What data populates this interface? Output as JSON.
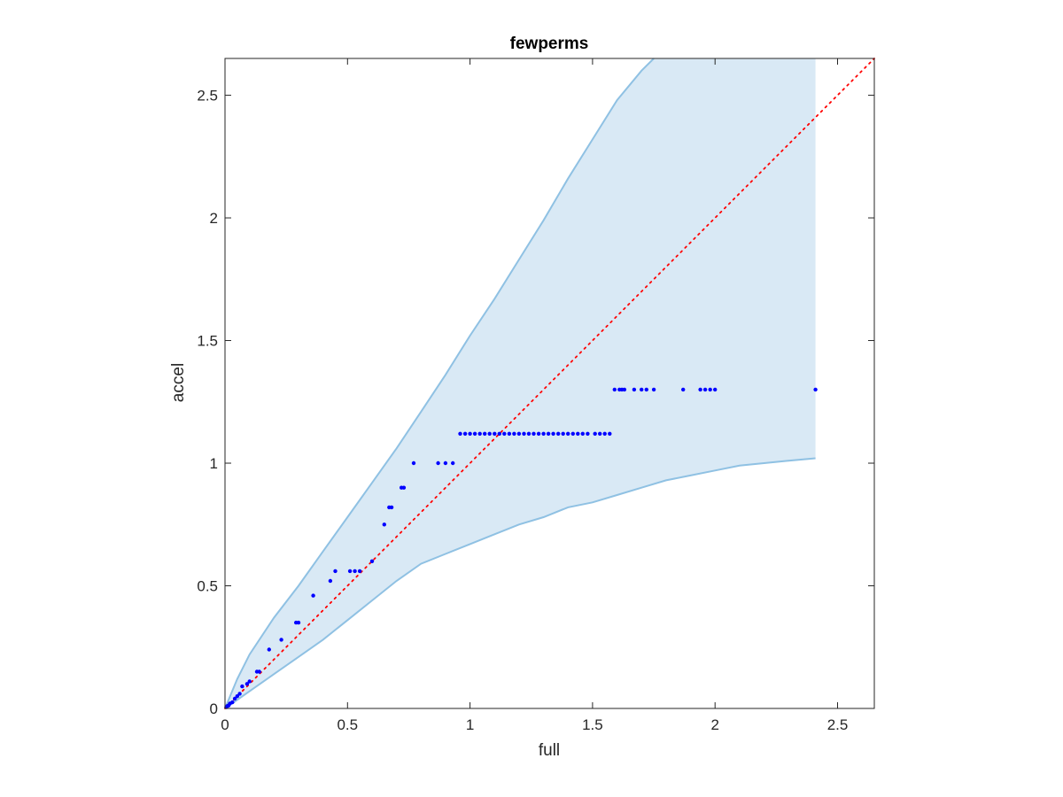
{
  "chart_data": {
    "type": "scatter",
    "title": "fewperms",
    "xlabel": "full",
    "ylabel": "accel",
    "xlim": [
      0,
      2.65
    ],
    "ylim": [
      0,
      2.65
    ],
    "xticks": [
      0,
      0.5,
      1,
      1.5,
      2,
      2.5
    ],
    "yticks": [
      0,
      0.5,
      1,
      1.5,
      2,
      2.5
    ],
    "xtick_labels": [
      "0",
      "0.5",
      "1",
      "1.5",
      "2",
      "2.5"
    ],
    "ytick_labels": [
      "0",
      "0.5",
      "1",
      "1.5",
      "2",
      "2.5"
    ],
    "grid": false,
    "band": {
      "color": "#d9e9f5",
      "edge_color": "#8fc1e3",
      "upper": [
        [
          0,
          0
        ],
        [
          0.05,
          0.12
        ],
        [
          0.1,
          0.22
        ],
        [
          0.2,
          0.37
        ],
        [
          0.3,
          0.5
        ],
        [
          0.4,
          0.64
        ],
        [
          0.5,
          0.78
        ],
        [
          0.6,
          0.92
        ],
        [
          0.7,
          1.06
        ],
        [
          0.8,
          1.21
        ],
        [
          0.9,
          1.36
        ],
        [
          1.0,
          1.52
        ],
        [
          1.1,
          1.67
        ],
        [
          1.2,
          1.83
        ],
        [
          1.3,
          1.99
        ],
        [
          1.4,
          2.16
        ],
        [
          1.5,
          2.32
        ],
        [
          1.6,
          2.48
        ],
        [
          1.7,
          2.6
        ],
        [
          1.75,
          2.65
        ],
        [
          2.41,
          2.65
        ]
      ],
      "lower": [
        [
          0,
          0
        ],
        [
          0.1,
          0.07
        ],
        [
          0.2,
          0.14
        ],
        [
          0.3,
          0.21
        ],
        [
          0.4,
          0.28
        ],
        [
          0.5,
          0.36
        ],
        [
          0.6,
          0.44
        ],
        [
          0.7,
          0.52
        ],
        [
          0.8,
          0.59
        ],
        [
          0.9,
          0.63
        ],
        [
          1.0,
          0.67
        ],
        [
          1.1,
          0.71
        ],
        [
          1.2,
          0.75
        ],
        [
          1.3,
          0.78
        ],
        [
          1.4,
          0.82
        ],
        [
          1.5,
          0.84
        ],
        [
          1.6,
          0.87
        ],
        [
          1.7,
          0.9
        ],
        [
          1.8,
          0.93
        ],
        [
          1.9,
          0.95
        ],
        [
          2.0,
          0.97
        ],
        [
          2.1,
          0.99
        ],
        [
          2.2,
          1.0
        ],
        [
          2.3,
          1.01
        ],
        [
          2.41,
          1.02
        ]
      ]
    },
    "reference_line": {
      "x": [
        0,
        2.65
      ],
      "y": [
        0,
        2.65
      ],
      "color": "#ff0000",
      "style": "dotted"
    },
    "series": [
      {
        "color": "#0000ff",
        "points": [
          [
            0.005,
            0.005
          ],
          [
            0.01,
            0.01
          ],
          [
            0.015,
            0.012
          ],
          [
            0.02,
            0.02
          ],
          [
            0.03,
            0.025
          ],
          [
            0.04,
            0.04
          ],
          [
            0.05,
            0.05
          ],
          [
            0.06,
            0.06
          ],
          [
            0.07,
            0.09
          ],
          [
            0.09,
            0.1
          ],
          [
            0.1,
            0.11
          ],
          [
            0.13,
            0.15
          ],
          [
            0.14,
            0.15
          ],
          [
            0.18,
            0.24
          ],
          [
            0.23,
            0.28
          ],
          [
            0.29,
            0.35
          ],
          [
            0.3,
            0.35
          ],
          [
            0.36,
            0.46
          ],
          [
            0.43,
            0.52
          ],
          [
            0.45,
            0.56
          ],
          [
            0.51,
            0.56
          ],
          [
            0.53,
            0.56
          ],
          [
            0.55,
            0.56
          ],
          [
            0.6,
            0.6
          ],
          [
            0.65,
            0.75
          ],
          [
            0.67,
            0.82
          ],
          [
            0.68,
            0.82
          ],
          [
            0.72,
            0.9
          ],
          [
            0.73,
            0.9
          ],
          [
            0.77,
            1.0
          ],
          [
            0.87,
            1.0
          ],
          [
            0.9,
            1.0
          ],
          [
            0.93,
            1.0
          ],
          [
            0.96,
            1.12
          ],
          [
            0.98,
            1.12
          ],
          [
            1.0,
            1.12
          ],
          [
            1.02,
            1.12
          ],
          [
            1.04,
            1.12
          ],
          [
            1.06,
            1.12
          ],
          [
            1.08,
            1.12
          ],
          [
            1.1,
            1.12
          ],
          [
            1.12,
            1.12
          ],
          [
            1.14,
            1.12
          ],
          [
            1.16,
            1.12
          ],
          [
            1.18,
            1.12
          ],
          [
            1.2,
            1.12
          ],
          [
            1.22,
            1.12
          ],
          [
            1.24,
            1.12
          ],
          [
            1.26,
            1.12
          ],
          [
            1.28,
            1.12
          ],
          [
            1.3,
            1.12
          ],
          [
            1.32,
            1.12
          ],
          [
            1.34,
            1.12
          ],
          [
            1.36,
            1.12
          ],
          [
            1.38,
            1.12
          ],
          [
            1.4,
            1.12
          ],
          [
            1.42,
            1.12
          ],
          [
            1.44,
            1.12
          ],
          [
            1.46,
            1.12
          ],
          [
            1.48,
            1.12
          ],
          [
            1.51,
            1.12
          ],
          [
            1.53,
            1.12
          ],
          [
            1.55,
            1.12
          ],
          [
            1.57,
            1.12
          ],
          [
            1.59,
            1.3
          ],
          [
            1.61,
            1.3
          ],
          [
            1.62,
            1.3
          ],
          [
            1.63,
            1.3
          ],
          [
            1.67,
            1.3
          ],
          [
            1.7,
            1.3
          ],
          [
            1.72,
            1.3
          ],
          [
            1.75,
            1.3
          ],
          [
            1.87,
            1.3
          ],
          [
            1.94,
            1.3
          ],
          [
            1.96,
            1.3
          ],
          [
            1.98,
            1.3
          ],
          [
            2.0,
            1.3
          ],
          [
            2.41,
            1.3
          ]
        ]
      }
    ]
  }
}
